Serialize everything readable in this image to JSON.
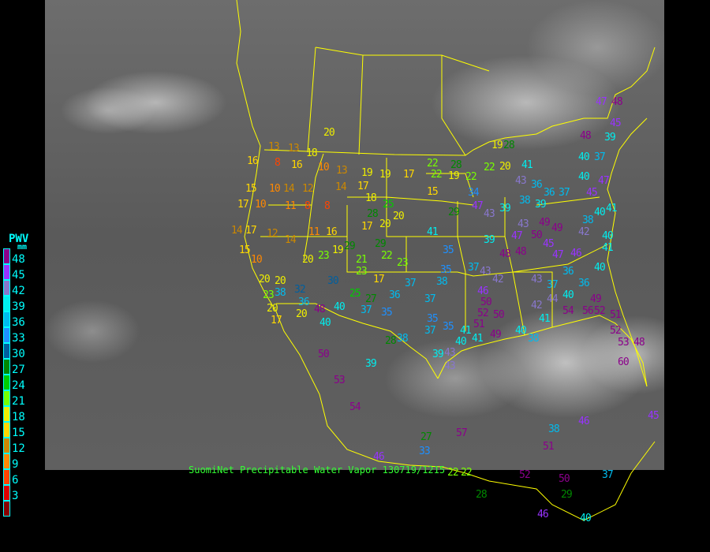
{
  "caption": "SuomiNet Precipitable Water Vapor 130719/1215",
  "legend": {
    "title": "PWV",
    "unit": "mm",
    "labels": [
      "48",
      "45",
      "42",
      "39",
      "36",
      "33",
      "30",
      "27",
      "24",
      "21",
      "18",
      "15",
      "12",
      "9",
      "6",
      "3"
    ],
    "colors": [
      "#8b008b",
      "#9933ff",
      "#8877cc",
      "#00eeee",
      "#00bbee",
      "#1e90ff",
      "#005f9f",
      "#008800",
      "#00cc00",
      "#77ff00",
      "#eeee00",
      "#ffd700",
      "#cc8800",
      "#ff8800",
      "#ff4400",
      "#dd0000",
      "#880000"
    ]
  },
  "boundary_color": "#ffff00",
  "stations": [
    "13",
    "13",
    "18",
    "16",
    "8",
    "16",
    "10",
    "13",
    "19",
    "19",
    "17",
    "22",
    "28",
    "22",
    "19",
    "22",
    "15",
    "10",
    "14",
    "12",
    "14",
    "17",
    "18",
    "15",
    "17",
    "10",
    "11",
    "8",
    "8",
    "28",
    "25",
    "20",
    "14",
    "17",
    "12",
    "11",
    "16",
    "17",
    "20",
    "41",
    "15",
    "10",
    "14",
    "19",
    "23",
    "21",
    "22",
    "29",
    "29",
    "23",
    "20",
    "20",
    "20",
    "23",
    "30",
    "17",
    "32",
    "27",
    "25",
    "23",
    "20",
    "17",
    "38",
    "36",
    "48",
    "40",
    "40",
    "20",
    "37",
    "35",
    "36",
    "37",
    "37",
    "38",
    "35",
    "35",
    "35",
    "35",
    "37",
    "41",
    "46",
    "50",
    "52",
    "50",
    "51",
    "49",
    "41",
    "40",
    "39",
    "43",
    "43",
    "50",
    "53",
    "54",
    "39",
    "28",
    "38",
    "27",
    "57",
    "33",
    "46",
    "22",
    "22",
    "28",
    "52",
    "50",
    "29",
    "40",
    "46",
    "37",
    "38",
    "51",
    "46",
    "45",
    "60",
    "19",
    "28",
    "22",
    "20",
    "41",
    "43",
    "36",
    "36",
    "38",
    "39",
    "34",
    "47",
    "39",
    "43",
    "29",
    "43",
    "49",
    "50",
    "49",
    "47",
    "45",
    "47",
    "46",
    "48",
    "39",
    "48",
    "37",
    "43",
    "42",
    "43",
    "36",
    "37",
    "36",
    "44",
    "40",
    "41",
    "42",
    "49",
    "40",
    "42",
    "40",
    "41",
    "40",
    "38",
    "54",
    "56",
    "52",
    "51",
    "52",
    "53",
    "48",
    "40",
    "37",
    "40",
    "47",
    "45",
    "37",
    "40",
    "38",
    "41",
    "47",
    "48",
    "45",
    "39",
    "48",
    "20"
  ]
}
